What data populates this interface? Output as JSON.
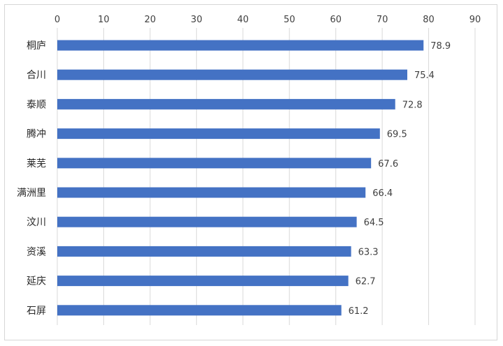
{
  "chart_data": {
    "type": "bar",
    "orientation": "horizontal",
    "categories": [
      "桐庐",
      "合川",
      "泰顺",
      "腾冲",
      "莱芜",
      "满洲里",
      "汶川",
      "资溪",
      "延庆",
      "石屏"
    ],
    "values": [
      78.9,
      75.4,
      72.8,
      69.5,
      67.6,
      66.4,
      64.5,
      63.3,
      62.7,
      61.2
    ],
    "data_labels": [
      "78.9",
      "75.4",
      "72.8",
      "69.5",
      "67.6",
      "66.4",
      "64.5",
      "63.3",
      "62.7",
      "61.2"
    ],
    "xlim": [
      0,
      90
    ],
    "x_ticks": [
      0,
      10,
      20,
      30,
      40,
      50,
      60,
      70,
      80,
      90
    ],
    "x_tick_labels": [
      "0",
      "10",
      "20",
      "30",
      "40",
      "50",
      "60",
      "70",
      "80",
      "90"
    ],
    "x_axis_position": "top",
    "grid": true,
    "bar_color": "#4472C4",
    "title": "",
    "xlabel": "",
    "ylabel": ""
  }
}
